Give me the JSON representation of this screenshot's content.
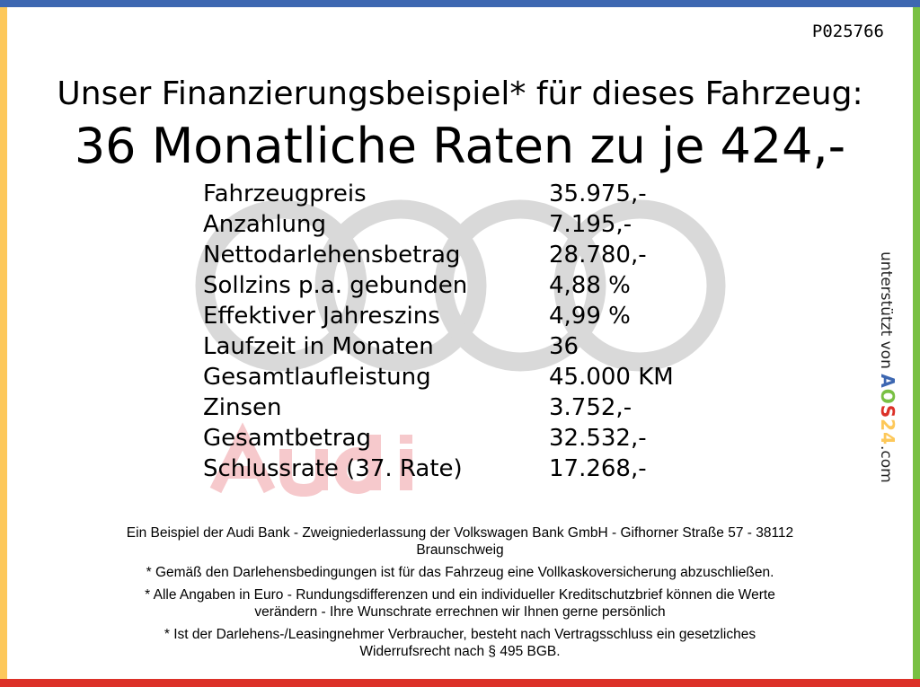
{
  "colors": {
    "top": "#3d67b1",
    "left": "#fdc85a",
    "right": "#79c043",
    "bottom": "#dc3128",
    "watermark_rings": "#d9d9d9",
    "watermark_text": "#f6c9cc"
  },
  "code": "P025766",
  "headline": "Unser Finanzierungsbeispiel* für dieses Fahrzeug:",
  "rate": "36 Monatliche Raten zu je 424,-",
  "watermark": {
    "brand": "Audi",
    "icon": "audi-rings-logo"
  },
  "rows": [
    {
      "label": "Fahrzeugpreis",
      "value": "35.975,-"
    },
    {
      "label": "Anzahlung",
      "value": "7.195,-"
    },
    {
      "label": "Nettodarlehensbetrag",
      "value": "28.780,-"
    },
    {
      "label": "Sollzins p.a. gebunden",
      "value": "4,88 %"
    },
    {
      "label": "Effektiver Jahreszins",
      "value": "4,99 %"
    },
    {
      "label": "Laufzeit in Monaten",
      "value": "36"
    },
    {
      "label": "Gesamtlaufleistung",
      "value": "45.000 KM"
    },
    {
      "label": "Zinsen",
      "value": "3.752,-"
    },
    {
      "label": "Gesamtbetrag",
      "value": "32.532,-"
    },
    {
      "label": "Schlussrate (37. Rate)",
      "value": "17.268,-"
    }
  ],
  "side": {
    "prefix": "unterstützt von",
    "logo": [
      "A",
      "O",
      "S",
      "2",
      "4"
    ],
    "suffix": ".com"
  },
  "footer": [
    "Ein Beispiel der Audi Bank - Zweigniederlassung der Volkswagen Bank GmbH - Gifhorner Straße 57 - 38112",
    "Braunschweig",
    "* Gemäß den Darlehensbedingungen ist für das Fahrzeug eine Vollkaskoversicherung abzuschließen.",
    "* Alle Angaben in Euro - Rundungsdifferenzen und ein individueller Kreditschutzbrief können die Werte",
    "verändern - Ihre Wunschrate errechnen wir Ihnen gerne persönlich",
    "* Ist der Darlehens-/Leasingnehmer Verbraucher, besteht nach Vertragsschluss ein gesetzliches",
    "Widerrufsrecht nach § 495 BGB."
  ]
}
